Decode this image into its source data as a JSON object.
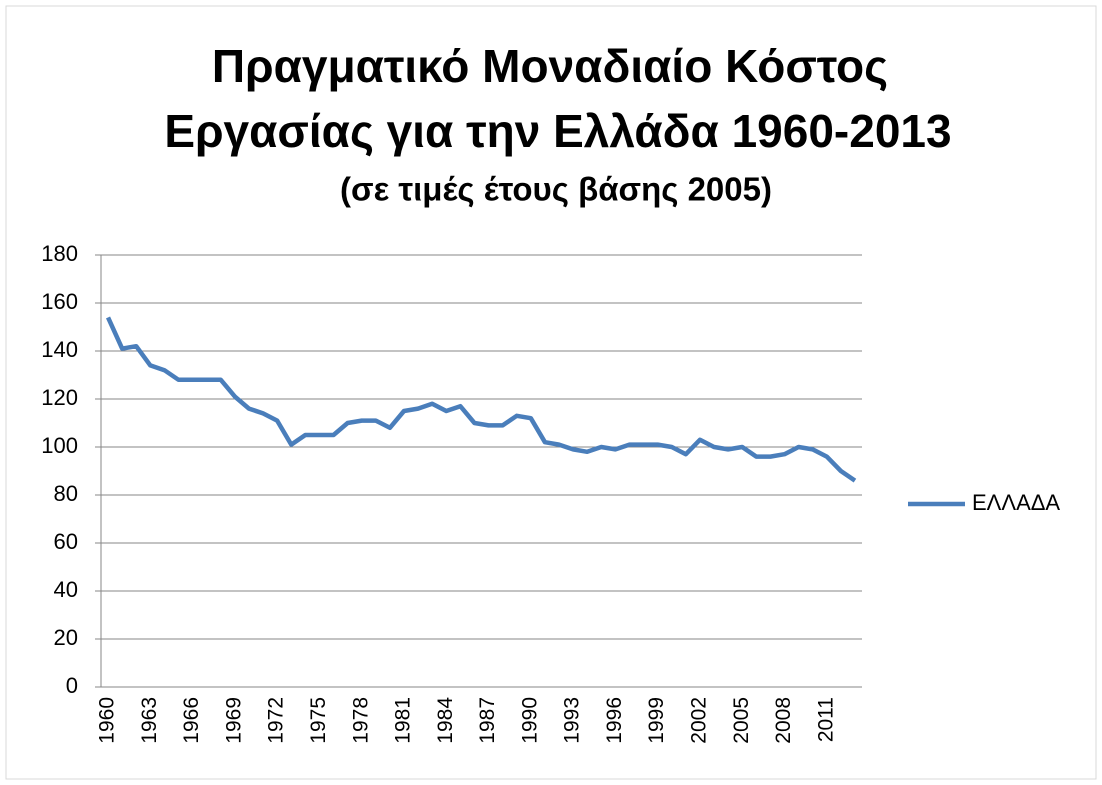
{
  "chart_data": {
    "type": "line",
    "title": [
      "Πραγματικό Μοναδιαίο Κόστος",
      "Εργασίας για την Ελλάδα 1960-2013"
    ],
    "subtitle": "(σε τιμές έτους βάσης 2005)",
    "categories": [
      "1960",
      null,
      null,
      "1963",
      null,
      null,
      "1966",
      null,
      null,
      "1969",
      null,
      null,
      "1972",
      null,
      null,
      "1975",
      null,
      null,
      "1978",
      null,
      null,
      "1981",
      null,
      null,
      "1984",
      null,
      null,
      "1987",
      null,
      null,
      "1990",
      null,
      null,
      "1993",
      null,
      null,
      "1996",
      null,
      null,
      "1999",
      null,
      null,
      "2002",
      null,
      null,
      "2005",
      null,
      null,
      "2008",
      null,
      null,
      "2011",
      null,
      null
    ],
    "series": [
      {
        "name": "ΕΛΛΑΔΑ",
        "color": "#4a7ebb",
        "values": [
          154,
          141,
          142,
          134,
          132,
          128,
          128,
          128,
          128,
          121,
          116,
          114,
          111,
          101,
          105,
          105,
          105,
          110,
          111,
          111,
          108,
          115,
          116,
          118,
          115,
          117,
          110,
          109,
          109,
          113,
          112,
          102,
          101,
          99,
          98,
          100,
          99,
          101,
          101,
          101,
          100,
          97,
          103,
          100,
          99,
          100,
          96,
          96,
          97,
          100,
          99,
          96,
          90,
          86
        ]
      }
    ],
    "ylim": [
      0,
      180
    ],
    "yticks": [
      0,
      20,
      40,
      60,
      80,
      100,
      120,
      140,
      160,
      180
    ],
    "grid": true,
    "legend": "right"
  }
}
